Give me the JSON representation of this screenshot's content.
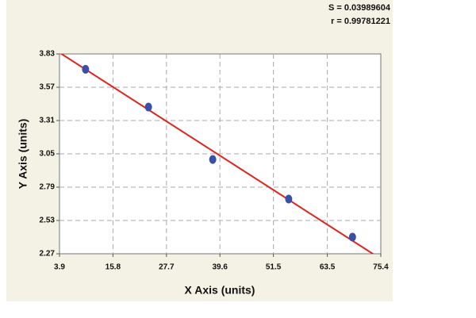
{
  "chart_data": {
    "type": "scatter",
    "xlabel": "X Axis (units)",
    "ylabel": "Y Axis (units)",
    "annotations": [
      "S = 0.03989604",
      "r = 0.99781221"
    ],
    "points": {
      "color": "#3a4fa6",
      "x": [
        9.7,
        23.7,
        38.0,
        54.9,
        69.1
      ],
      "y": [
        3.71,
        3.415,
        3.006,
        2.697,
        2.4
      ]
    },
    "fit_line": {
      "color": "#e0241c",
      "x": [
        3.9,
        75.4
      ],
      "y": [
        3.84,
        2.23
      ]
    },
    "xlim": [
      3.9,
      75.4
    ],
    "xticks": [
      3.9,
      15.8,
      27.7,
      39.6,
      51.5,
      63.5,
      75.4
    ],
    "ylim": [
      2.27,
      3.83
    ],
    "yticks": [
      2.27,
      2.53,
      2.79,
      3.05,
      3.31,
      3.57,
      3.83
    ],
    "grid": true
  }
}
